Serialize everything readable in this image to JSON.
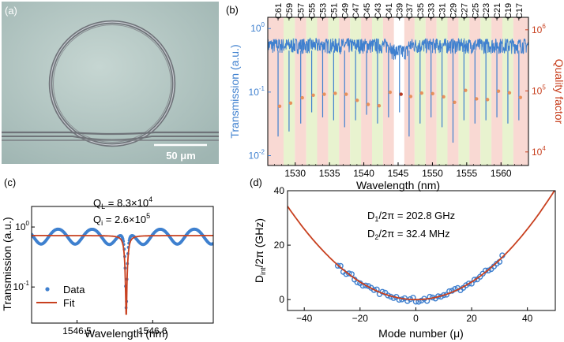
{
  "panels": {
    "a": {
      "label": "(a)",
      "scale_bar": "50 μm"
    },
    "b": {
      "label": "(b)",
      "chart_data": {
        "type": "scatter",
        "xlabel": "Wavelength (nm)",
        "ylabel_left": "Transmission (a.u.)",
        "ylabel_right": "Quality factor",
        "xlim": [
          1526,
          1564
        ],
        "x_ticks": [
          1530,
          1535,
          1540,
          1545,
          1550,
          1555,
          1560
        ],
        "ylim_left": [
          0.007,
          1.5
        ],
        "ylim_left_log": true,
        "y_left_tick_labels": [
          "10^-2",
          "10^-1",
          "10^0"
        ],
        "ylim_right": [
          6000,
          1600000
        ],
        "ylim_right_log": true,
        "y_right_tick_labels": [
          "10^4",
          "10^5",
          "10^6"
        ],
        "mode_labels": [
          "C61",
          "C59",
          "C57",
          "C55",
          "C53",
          "C51",
          "C49",
          "C47",
          "C45",
          "C43",
          "C41",
          "C39",
          "C37",
          "C35",
          "C33",
          "C31",
          "C29",
          "C27",
          "C25",
          "C23",
          "C21",
          "C19",
          "C17"
        ],
        "resonance_wavelengths": [
          1527.5,
          1529.1,
          1530.8,
          1532.4,
          1534.0,
          1535.6,
          1537.2,
          1538.8,
          1540.4,
          1542.0,
          1543.6,
          1545.2,
          1546.6,
          1548.2,
          1549.8,
          1551.4,
          1553.0,
          1554.6,
          1556.2,
          1557.8,
          1559.4,
          1561.0,
          1562.6
        ],
        "resonance_dip_depths": [
          0.05,
          0.06,
          0.08,
          0.12,
          0.1,
          0.09,
          0.07,
          0.09,
          0.11,
          0.08,
          0.1,
          0.12,
          0.05,
          0.08,
          0.1,
          0.07,
          0.04,
          0.09,
          0.08,
          0.09,
          0.1,
          0.08,
          0.09
        ],
        "quality_factors": [
          56000,
          63000,
          77000,
          85000,
          88000,
          91000,
          88000,
          70000,
          60000,
          57000,
          95000,
          88000,
          81000,
          92000,
          90000,
          80000,
          65000,
          102000,
          74000,
          72000,
          99000,
          93000,
          78000
        ],
        "highlight_index": 11,
        "background_band_colors": [
          "#f9d9d3",
          "#e8f3cf"
        ],
        "band_center_color": "#ffffff",
        "transmission_color": "#3f80cf",
        "q_color": "#e8915c",
        "highlight_color": "#b83a22"
      }
    },
    "c": {
      "label": "(c)",
      "annotation_ql_main": "Q",
      "annotation_ql_sub": "L",
      "annotation_ql_value": " = 8.3×10",
      "annotation_ql_exp": "4",
      "annotation_qi_main": "Q",
      "annotation_qi_sub": "i",
      "annotation_qi_value": " = 2.6×10",
      "annotation_qi_exp": "5",
      "chart_data": {
        "type": "line",
        "xlabel": "Wavelength (nm)",
        "ylabel": "Transmission (a.u.)",
        "xlim": [
          1546.44,
          1546.68
        ],
        "x_ticks": [
          1546.5,
          1546.6
        ],
        "x_tick_labels": [
          "1546.5",
          "1546.6"
        ],
        "ylim": [
          0.025,
          2.2
        ],
        "ylog": true,
        "y_tick_labels": [
          "10^0",
          "10^-1"
        ],
        "legend": [
          "Data",
          "Fit"
        ],
        "legend_position": "bottom-left",
        "dip_center": 1546.565,
        "dip_min": 0.032,
        "baseline": 0.72,
        "data_ripple_amplitude": 0.28,
        "data_color": "#3f80cf",
        "fit_color": "#c8401f"
      }
    },
    "d": {
      "label": "(d)",
      "annotation_d1_main": "D",
      "annotation_d1_sub": "1",
      "annotation_d1_rest": "/2π = 202.8 GHz",
      "annotation_d2_main": "D",
      "annotation_d2_sub": "2",
      "annotation_d2_rest": "/2π = 32.4 MHz",
      "chart_data": {
        "type": "scatter",
        "xlabel": "Mode number (μ)",
        "ylabel": "D_int/2π (GHz)",
        "xlim": [
          -46,
          50
        ],
        "ylim": [
          -4,
          40
        ],
        "x_ticks": [
          -40,
          -20,
          0,
          20,
          40
        ],
        "y_ticks": [
          0,
          20,
          40
        ],
        "fit_curvature_ghz": 0.0162,
        "data_mu_range": [
          -28,
          31
        ],
        "data_color": "#3f80cf",
        "fit_color": "#c8401f"
      }
    }
  }
}
